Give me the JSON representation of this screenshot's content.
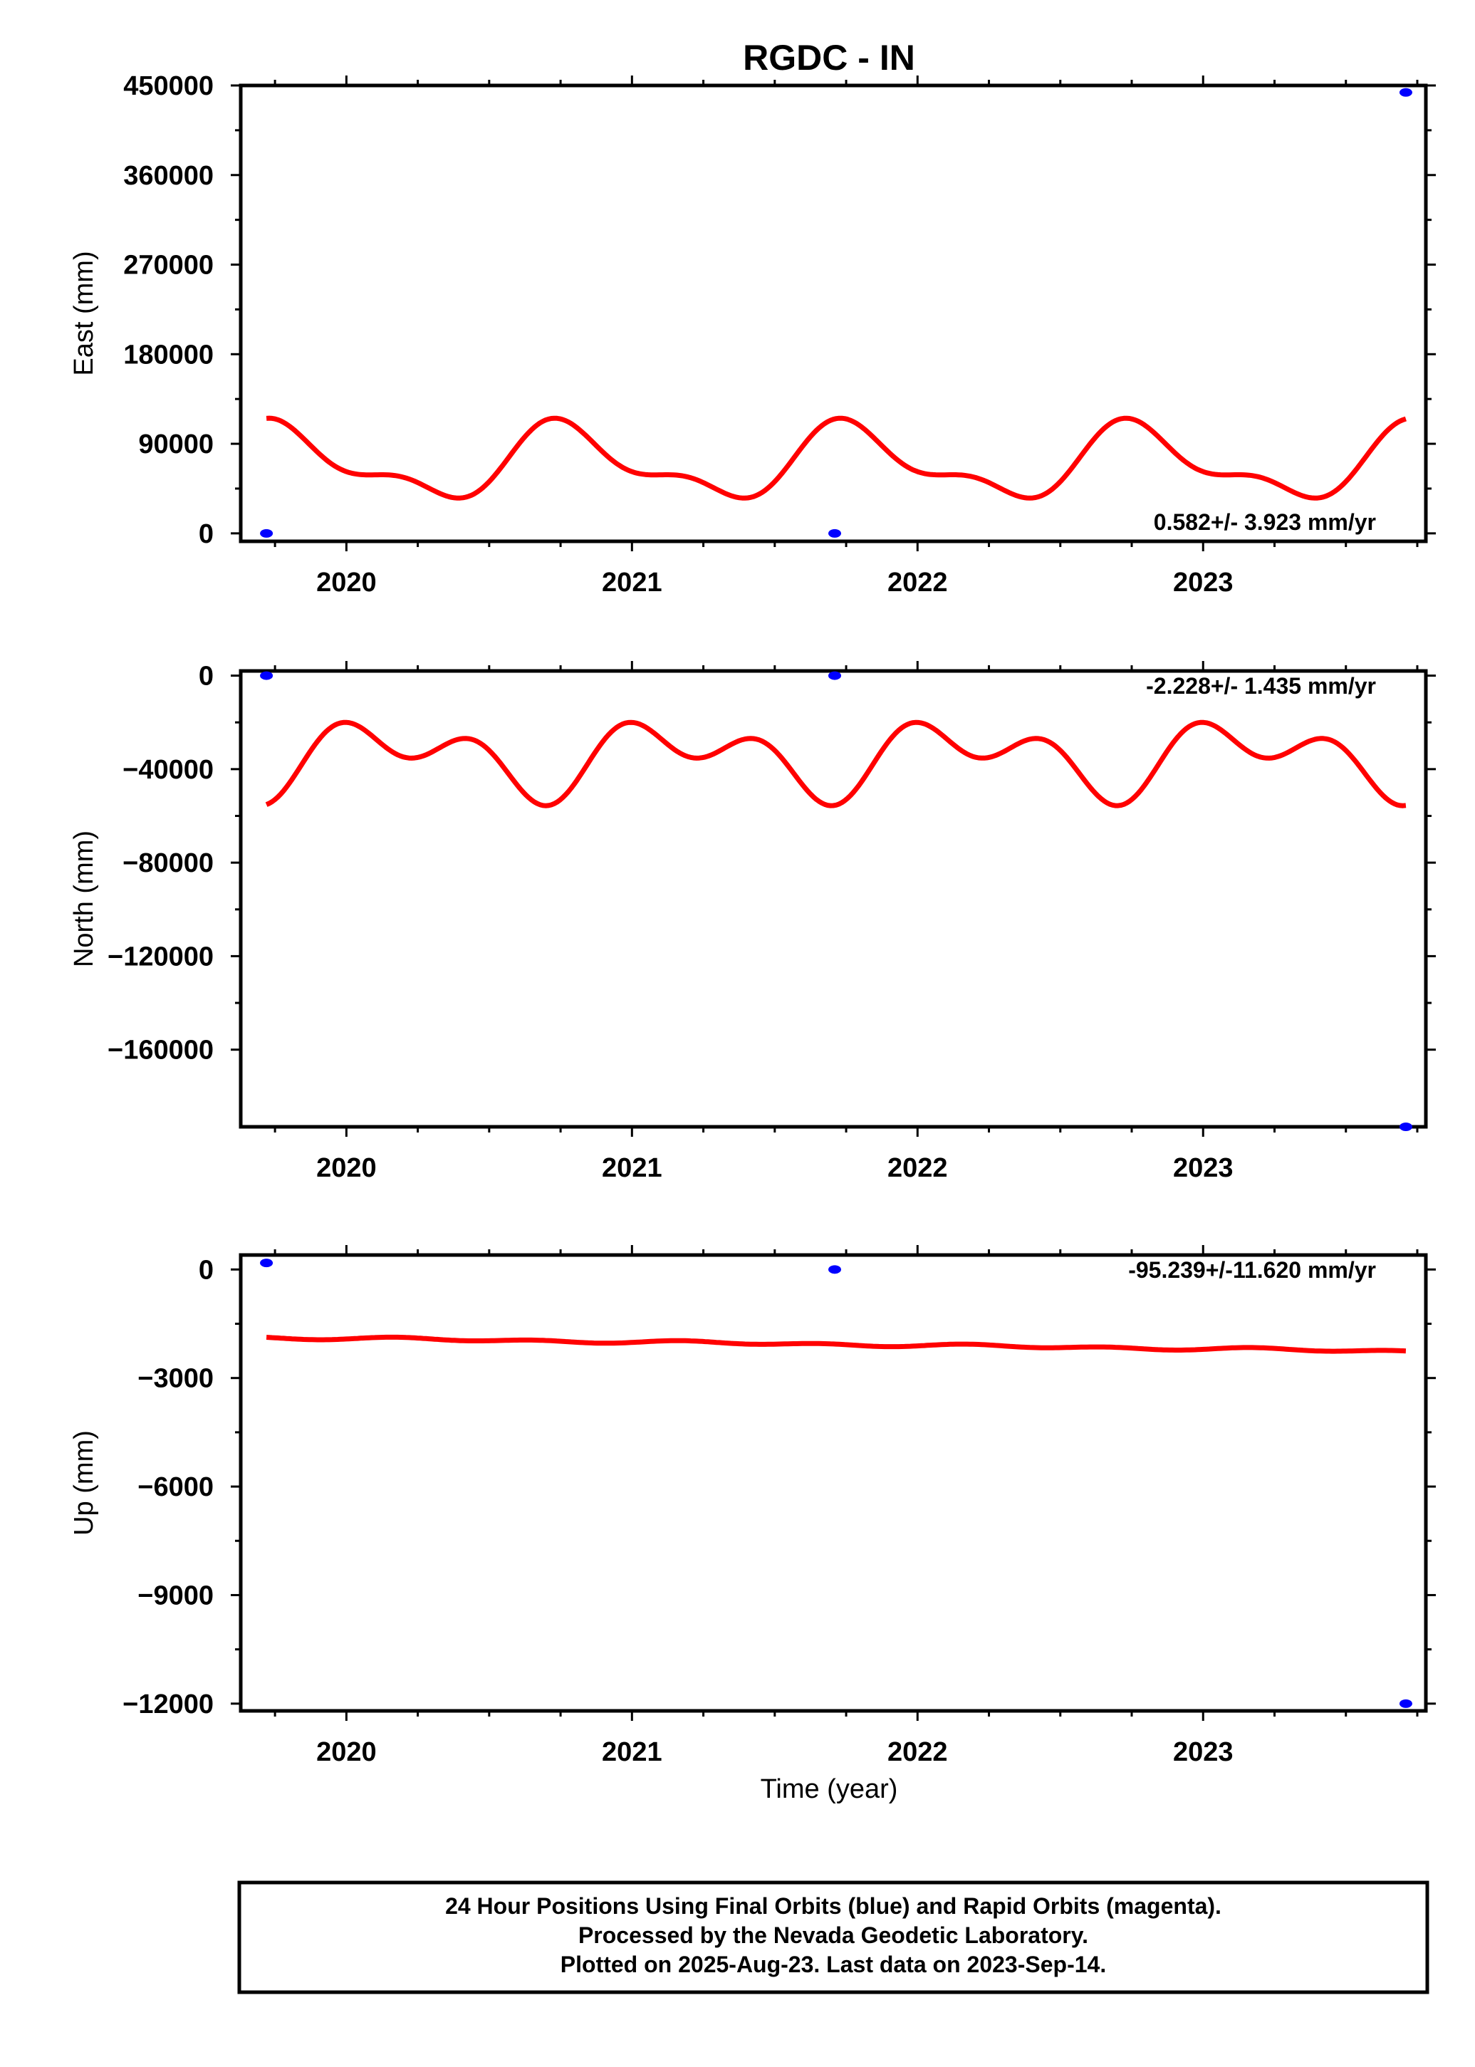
{
  "title": "RGDC - IN",
  "xlabel": "Time (year)",
  "footer": {
    "line1": "24 Hour Positions Using Final Orbits (blue) and Rapid Orbits (magenta).",
    "line2": "Processed by the Nevada Geodetic Laboratory.",
    "line3": "Plotted on 2025-Aug-23. Last data on 2023-Sep-14."
  },
  "colors": {
    "data": "#0000ff",
    "model": "#ff0000",
    "frame": "#000000"
  },
  "chart_data": [
    {
      "type": "scatter",
      "ylabel": "East (mm)",
      "rate_label": "0.582+/- 3.923 mm/yr",
      "xlim": [
        2019.63,
        2023.78
      ],
      "ylim": [
        -8000,
        450000
      ],
      "x_ticks": [
        2020,
        2021,
        2022,
        2023
      ],
      "y_ticks": [
        0,
        90000,
        180000,
        270000,
        360000,
        450000
      ],
      "points": {
        "x": [
          2019.72,
          2021.71,
          2023.71
        ],
        "y": [
          0,
          0,
          443000
        ]
      },
      "model": {
        "x0": 2019.72,
        "x1": 2023.71,
        "mean": 70000,
        "trend": 0.582,
        "annual_cos": 5000,
        "annual_sin": -32000,
        "semi_cos": -13000,
        "semi_sin": 8000
      }
    },
    {
      "type": "scatter",
      "ylabel": "North (mm)",
      "rate_label": "-2.228+/- 1.435 mm/yr",
      "xlim": [
        2019.63,
        2023.78
      ],
      "ylim": [
        -193000,
        2000
      ],
      "x_ticks": [
        2020,
        2021,
        2022,
        2023
      ],
      "y_ticks": [
        -160000,
        -120000,
        -80000,
        -40000,
        0
      ],
      "points": {
        "x": [
          2019.72,
          2021.71,
          2023.71
        ],
        "y": [
          0,
          0,
          -193000
        ]
      },
      "model": {
        "x0": 2019.72,
        "x1": 2023.71,
        "mean": -35000,
        "trend": -2.228,
        "annual_cos": 6000,
        "annual_sin": 9000,
        "semi_cos": 9000,
        "semi_sin": -5000
      }
    },
    {
      "type": "scatter",
      "ylabel": "Up (mm)",
      "rate_label": "-95.239+/-11.620 mm/yr",
      "xlim": [
        2019.63,
        2023.78
      ],
      "ylim": [
        -12200,
        400
      ],
      "x_ticks": [
        2020,
        2021,
        2022,
        2023
      ],
      "y_ticks": [
        -12000,
        -9000,
        -6000,
        -3000,
        0
      ],
      "points": {
        "x": [
          2019.72,
          2021.71,
          2023.71
        ],
        "y": [
          180,
          0,
          -12000
        ]
      },
      "model": {
        "x0": 2019.72,
        "x1": 2023.71,
        "mean": -1880,
        "trend": -95.239,
        "annual_cos": 0,
        "annual_sin": 20,
        "semi_cos": -15,
        "semi_sin": 30
      }
    }
  ]
}
